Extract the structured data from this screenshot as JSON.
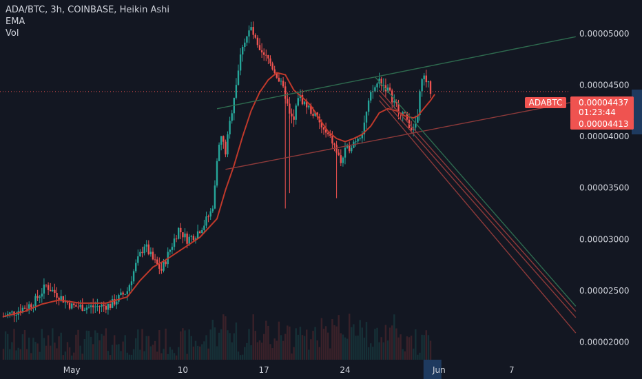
{
  "legend": {
    "symbol_line": "ADA/BTC, 3h, COINBASE, Heikin Ashi",
    "ema_label": "EMA",
    "vol_label": "Vol"
  },
  "price_tag": {
    "symbol": "ADABTC",
    "last_price": "0.00004437",
    "countdown": "01:23:44",
    "ema_value": "0.00004413"
  },
  "colors": {
    "background": "#131722",
    "up": "#26a69a",
    "down": "#ef5350",
    "ema": "#c0392b",
    "trend_green": "#2e6b4f",
    "trend_red": "#8e3a3a",
    "axis_text": "#d1d4dc",
    "highlight": "#1e3a5f"
  },
  "chart_data": {
    "type": "candlestick",
    "symbol": "ADA/BTC",
    "interval": "3h",
    "exchange": "COINBASE",
    "style": "Heikin Ashi",
    "ylim": [
      1.83e-05,
      5.3e-05
    ],
    "y_ticks": [
      "0.00005000",
      "0.00004500",
      "0.00004000",
      "0.00003500",
      "0.00003000",
      "0.00002500",
      "0.00002000"
    ],
    "y_tick_values": [
      5e-05,
      4.5e-05,
      4e-05,
      3.5e-05,
      3e-05,
      2.5e-05,
      2e-05
    ],
    "x_ticks": [
      {
        "label": "May",
        "bar": 16
      },
      {
        "label": "10",
        "bar": 42
      },
      {
        "label": "17",
        "bar": 61
      },
      {
        "label": "24",
        "bar": 80
      },
      {
        "label": "Jun",
        "bar": 102
      },
      {
        "label": "7",
        "bar": 119
      }
    ],
    "x_highlight_bar": 99,
    "last_price": 4.437e-05,
    "ema_last": 4.413e-05,
    "price_series": [
      [
        0,
        2.25e-05
      ],
      [
        3,
        2.3e-05
      ],
      [
        7,
        2.38e-05
      ],
      [
        10,
        2.55e-05
      ],
      [
        13,
        2.45e-05
      ],
      [
        16,
        2.35e-05
      ],
      [
        20,
        2.34e-05
      ],
      [
        25,
        2.36e-05
      ],
      [
        29,
        2.5e-05
      ],
      [
        31,
        2.75e-05
      ],
      [
        33,
        2.95e-05
      ],
      [
        35,
        2.8e-05
      ],
      [
        37,
        2.7e-05
      ],
      [
        39,
        2.9e-05
      ],
      [
        41,
        3.1e-05
      ],
      [
        43,
        3e-05
      ],
      [
        45,
        3.05e-05
      ],
      [
        47,
        3.15e-05
      ],
      [
        49,
        3.3e-05
      ],
      [
        50,
        3.8e-05
      ],
      [
        51,
        4e-05
      ],
      [
        52,
        3.85e-05
      ],
      [
        54,
        4.4e-05
      ],
      [
        56,
        4.9e-05
      ],
      [
        58,
        5.05e-05
      ],
      [
        60,
        4.8e-05
      ],
      [
        62,
        4.75e-05
      ],
      [
        64,
        4.6e-05
      ],
      [
        66,
        4.4e-05
      ],
      [
        67,
        4.2e-05
      ],
      [
        68,
        4.15e-05
      ],
      [
        69,
        4.4e-05
      ],
      [
        71,
        4.3e-05
      ],
      [
        73,
        4.2e-05
      ],
      [
        75,
        4.05e-05
      ],
      [
        77,
        3.95e-05
      ],
      [
        79,
        3.75e-05
      ],
      [
        80,
        3.85e-05
      ],
      [
        82,
        3.95e-05
      ],
      [
        84,
        4.05e-05
      ],
      [
        86,
        4.4e-05
      ],
      [
        88,
        4.55e-05
      ],
      [
        90,
        4.45e-05
      ],
      [
        92,
        4.3e-05
      ],
      [
        94,
        4.2e-05
      ],
      [
        96,
        4.05e-05
      ],
      [
        97,
        4.2e-05
      ],
      [
        98,
        4.6e-05
      ],
      [
        99,
        4.55e-05
      ],
      [
        100,
        4.44e-05
      ]
    ],
    "ema_series": [
      [
        0,
        2.25e-05
      ],
      [
        5,
        2.3e-05
      ],
      [
        9,
        2.37e-05
      ],
      [
        13,
        2.41e-05
      ],
      [
        18,
        2.38e-05
      ],
      [
        24,
        2.38e-05
      ],
      [
        29,
        2.44e-05
      ],
      [
        32,
        2.6e-05
      ],
      [
        35,
        2.73e-05
      ],
      [
        38,
        2.8e-05
      ],
      [
        42,
        2.91e-05
      ],
      [
        46,
        3.02e-05
      ],
      [
        50,
        3.2e-05
      ],
      [
        52,
        3.48e-05
      ],
      [
        54,
        3.72e-05
      ],
      [
        56,
        4e-05
      ],
      [
        58,
        4.25e-05
      ],
      [
        60,
        4.43e-05
      ],
      [
        62,
        4.55e-05
      ],
      [
        64,
        4.62e-05
      ],
      [
        66,
        4.6e-05
      ],
      [
        68,
        4.45e-05
      ],
      [
        70,
        4.38e-05
      ],
      [
        72,
        4.3e-05
      ],
      [
        74,
        4.17e-05
      ],
      [
        76,
        4.05e-05
      ],
      [
        78,
        3.98e-05
      ],
      [
        80,
        3.95e-05
      ],
      [
        82,
        3.98e-05
      ],
      [
        84,
        4.02e-05
      ],
      [
        86,
        4.1e-05
      ],
      [
        88,
        4.23e-05
      ],
      [
        90,
        4.27e-05
      ],
      [
        92,
        4.25e-05
      ],
      [
        94,
        4.2e-05
      ],
      [
        96,
        4.18e-05
      ],
      [
        97,
        4.2e-05
      ],
      [
        98,
        4.25e-05
      ],
      [
        100,
        4.35e-05
      ],
      [
        101,
        4.41e-05
      ]
    ],
    "trend_lines": [
      {
        "name": "upper-channel",
        "color": "green",
        "from": [
          50,
          4.27e-05
        ],
        "to": [
          134,
          4.97e-05
        ]
      },
      {
        "name": "lower-channel",
        "color": "red",
        "from": [
          52,
          3.68e-05
        ],
        "to": [
          134,
          4.34e-05
        ]
      },
      {
        "name": "fork-upper",
        "color": "green",
        "from": [
          87,
          4.58e-05
        ],
        "to": [
          134,
          2.35e-05
        ]
      },
      {
        "name": "fork-mid-1",
        "color": "red",
        "from": [
          88,
          4.45e-05
        ],
        "to": [
          134,
          2.3e-05
        ]
      },
      {
        "name": "fork-mid-2",
        "color": "red",
        "from": [
          88,
          4.4e-05
        ],
        "to": [
          134,
          2.24e-05
        ]
      },
      {
        "name": "fork-lower",
        "color": "red",
        "from": [
          88,
          4.35e-05
        ],
        "to": [
          134,
          2.09e-05
        ]
      }
    ]
  }
}
